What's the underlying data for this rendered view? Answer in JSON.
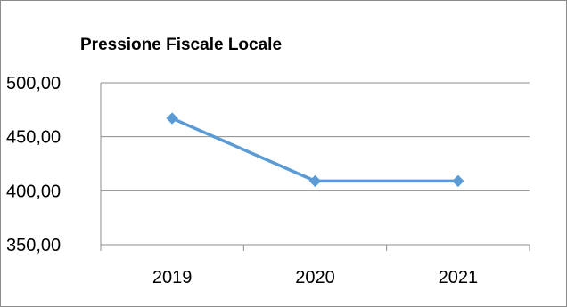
{
  "chart_data": {
    "type": "line",
    "title": "Pressione Fiscale Locale",
    "categories": [
      "2019",
      "2020",
      "2021"
    ],
    "series": [
      {
        "values": [
          467,
          409,
          409
        ],
        "color": "#5b9bd5"
      }
    ],
    "ylim": [
      350,
      500
    ],
    "yticks": [
      350,
      400,
      450,
      500
    ],
    "ytick_labels": [
      "350,00",
      "400,00",
      "450,00",
      "500,00"
    ],
    "grid": true,
    "legend": "none",
    "marker": "diamond"
  }
}
